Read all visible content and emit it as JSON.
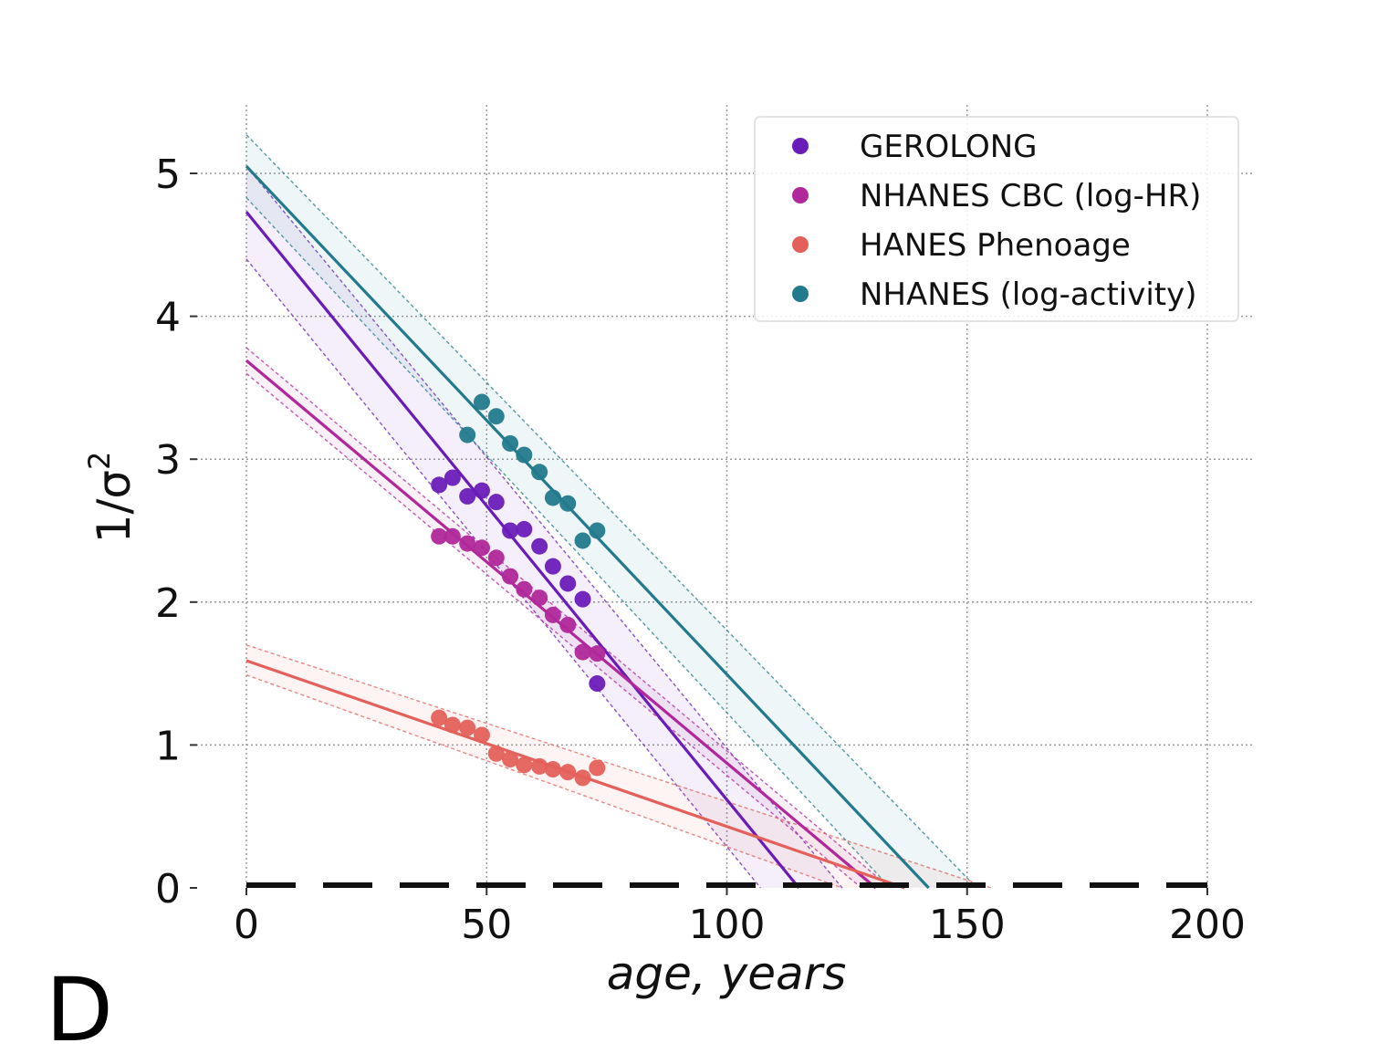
{
  "chart_data": {
    "type": "scatter",
    "panel_label": "D",
    "title": "",
    "xlabel": "age, years",
    "ylabel": "1/σ²",
    "ylabel_parts": {
      "base": "1/σ",
      "sup": "2"
    },
    "xlim": [
      0,
      200
    ],
    "ylim": [
      0,
      5.3
    ],
    "xticks": [
      0,
      50,
      100,
      150,
      200
    ],
    "xtick_labels": [
      "0",
      "50",
      "100",
      "150",
      "200"
    ],
    "yticks": [
      0,
      1,
      2,
      3,
      4,
      5
    ],
    "ytick_labels": [
      "0",
      "1",
      "2",
      "3",
      "4",
      "5"
    ],
    "grid": true,
    "legend_position": "top-right",
    "zero_reference_line": {
      "y": 0,
      "style": "dashed",
      "color": "#111111"
    },
    "series": [
      {
        "name": "GEROLONG",
        "color": "#6a1cb8",
        "points": [
          [
            40.1,
            2.82
          ],
          [
            42.9,
            2.87
          ],
          [
            46.0,
            2.74
          ],
          [
            49.0,
            2.78
          ],
          [
            52.0,
            2.7
          ],
          [
            54.9,
            2.5
          ],
          [
            57.8,
            2.51
          ],
          [
            61.0,
            2.39
          ],
          [
            63.8,
            2.25
          ],
          [
            66.9,
            2.13
          ],
          [
            70.0,
            2.02
          ],
          [
            73.0,
            1.43
          ]
        ],
        "fit": {
          "intercept": 4.73,
          "x_zero": 115
        },
        "band_low": {
          "intercept": 4.4,
          "x_zero": 107
        },
        "band_high": {
          "intercept": 5.05,
          "x_zero": 124
        }
      },
      {
        "name": "NHANES CBC (log-HR)",
        "color": "#b0289a",
        "points": [
          [
            40.1,
            2.46
          ],
          [
            42.9,
            2.46
          ],
          [
            46.0,
            2.41
          ],
          [
            49.0,
            2.38
          ],
          [
            52.0,
            2.31
          ],
          [
            54.9,
            2.18
          ],
          [
            57.8,
            2.09
          ],
          [
            61.0,
            2.03
          ],
          [
            63.8,
            1.91
          ],
          [
            66.9,
            1.84
          ],
          [
            70.0,
            1.65
          ],
          [
            73.0,
            1.64
          ]
        ],
        "fit": {
          "intercept": 3.69,
          "x_zero": 131
        },
        "band_low": {
          "intercept": 3.6,
          "x_zero": 128
        },
        "band_high": {
          "intercept": 3.78,
          "x_zero": 134
        }
      },
      {
        "name": "HANES Phenoage",
        "color": "#e4605a",
        "points": [
          [
            40.1,
            1.19
          ],
          [
            42.9,
            1.14
          ],
          [
            46.0,
            1.12
          ],
          [
            49.0,
            1.07
          ],
          [
            52.0,
            0.94
          ],
          [
            54.9,
            0.9
          ],
          [
            57.8,
            0.86
          ],
          [
            61.0,
            0.85
          ],
          [
            63.8,
            0.83
          ],
          [
            66.9,
            0.81
          ],
          [
            70.0,
            0.77
          ],
          [
            73.0,
            0.84
          ]
        ],
        "fit": {
          "intercept": 1.59,
          "x_zero": 137
        },
        "band_low": {
          "intercept": 1.49,
          "x_zero": 124
        },
        "band_high": {
          "intercept": 1.7,
          "x_zero": 155
        }
      },
      {
        "name": "NHANES (log-activity)",
        "color": "#237a8c",
        "points": [
          [
            46.0,
            3.17
          ],
          [
            49.0,
            3.4
          ],
          [
            52.0,
            3.3
          ],
          [
            54.9,
            3.11
          ],
          [
            57.8,
            3.03
          ],
          [
            61.0,
            2.91
          ],
          [
            63.8,
            2.73
          ],
          [
            66.9,
            2.69
          ],
          [
            70.0,
            2.43
          ],
          [
            73.0,
            2.5
          ]
        ],
        "fit": {
          "intercept": 5.05,
          "x_zero": 142
        },
        "band_low": {
          "intercept": 4.83,
          "x_zero": 134
        },
        "band_high": {
          "intercept": 5.27,
          "x_zero": 152
        }
      }
    ]
  }
}
